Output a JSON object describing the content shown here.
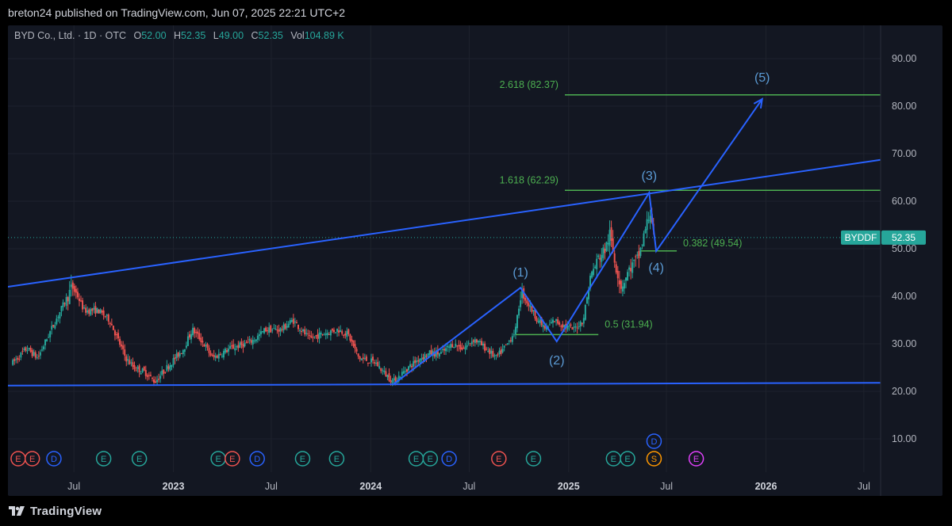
{
  "header": {
    "publisher": "breton24 published on TradingView.com, Jun 07, 2025 22:21 UTC+2"
  },
  "legend": {
    "symbol": "BYD Co., Ltd. · 1D · OTC",
    "o_label": "O",
    "o_value": "52.00",
    "h_label": "H",
    "h_value": "52.35",
    "l_label": "L",
    "l_value": "49.00",
    "c_label": "C",
    "c_value": "52.35",
    "vol_label": "Vol",
    "vol_value": "104.89 K"
  },
  "footer": {
    "brand": "TradingView"
  },
  "colors": {
    "background": "#131722",
    "up": "#26a69a",
    "down": "#ef5350",
    "trendline": "#2962ff",
    "fib": "#4caf50",
    "wave_label": "#5b9bd5"
  },
  "chart_data": {
    "type": "candlestick",
    "title": "",
    "xlabel": "",
    "ylabel": "",
    "ylim": [
      3,
      97
    ],
    "y_ticks": [
      "10.00",
      "20.00",
      "30.00",
      "40.00",
      "50.00",
      "60.00",
      "70.00",
      "80.00",
      "90.00"
    ],
    "x_ticks": [
      {
        "date": "2022-07-01",
        "label": "Jul",
        "bold": false
      },
      {
        "date": "2023-01-01",
        "label": "2023",
        "bold": true
      },
      {
        "date": "2023-07-01",
        "label": "Jul",
        "bold": false
      },
      {
        "date": "2024-01-01",
        "label": "2024",
        "bold": true
      },
      {
        "date": "2024-07-01",
        "label": "Jul",
        "bold": false
      },
      {
        "date": "2025-01-01",
        "label": "2025",
        "bold": true
      },
      {
        "date": "2025-07-01",
        "label": "Jul",
        "bold": false
      },
      {
        "date": "2026-01-01",
        "label": "2026",
        "bold": true
      },
      {
        "date": "2026-07-01",
        "label": "Jul",
        "bold": false
      }
    ],
    "price_path": [
      [
        "2022-03-10",
        26
      ],
      [
        "2022-04-05",
        29
      ],
      [
        "2022-04-25",
        27
      ],
      [
        "2022-05-20",
        33
      ],
      [
        "2022-06-15",
        39
      ],
      [
        "2022-06-28",
        42
      ],
      [
        "2022-07-08",
        40
      ],
      [
        "2022-07-20",
        37
      ],
      [
        "2022-08-15",
        37
      ],
      [
        "2022-09-05",
        35
      ],
      [
        "2022-10-05",
        27
      ],
      [
        "2022-10-20",
        25
      ],
      [
        "2022-11-10",
        24
      ],
      [
        "2022-11-28",
        22
      ],
      [
        "2022-12-20",
        25
      ],
      [
        "2023-01-20",
        29
      ],
      [
        "2023-02-05",
        33
      ],
      [
        "2023-02-20",
        31
      ],
      [
        "2023-03-15",
        27
      ],
      [
        "2023-04-15",
        29
      ],
      [
        "2023-05-15",
        30
      ],
      [
        "2023-06-01",
        31
      ],
      [
        "2023-06-20",
        33
      ],
      [
        "2023-07-20",
        33
      ],
      [
        "2023-08-10",
        35
      ],
      [
        "2023-08-25",
        33
      ],
      [
        "2023-09-10",
        31
      ],
      [
        "2023-10-01",
        32
      ],
      [
        "2023-11-01",
        33
      ],
      [
        "2023-11-20",
        32
      ],
      [
        "2023-12-10",
        27
      ],
      [
        "2024-01-10",
        26
      ],
      [
        "2024-01-25",
        24
      ],
      [
        "2024-02-12",
        22
      ],
      [
        "2024-03-10",
        25
      ],
      [
        "2024-04-01",
        27
      ],
      [
        "2024-04-20",
        28
      ],
      [
        "2024-05-10",
        28
      ],
      [
        "2024-06-01",
        30
      ],
      [
        "2024-06-20",
        29
      ],
      [
        "2024-07-10",
        31
      ],
      [
        "2024-08-01",
        29
      ],
      [
        "2024-08-20",
        27
      ],
      [
        "2024-09-10",
        30
      ],
      [
        "2024-09-25",
        33
      ],
      [
        "2024-10-05",
        41
      ],
      [
        "2024-10-15",
        39
      ],
      [
        "2024-11-05",
        35
      ],
      [
        "2024-11-20",
        33
      ],
      [
        "2024-12-05",
        35
      ],
      [
        "2024-12-20",
        34
      ],
      [
        "2025-01-10",
        33
      ],
      [
        "2025-01-28",
        35
      ],
      [
        "2025-02-10",
        44
      ],
      [
        "2025-02-25",
        48
      ],
      [
        "2025-03-10",
        50
      ],
      [
        "2025-03-18",
        53
      ],
      [
        "2025-03-28",
        47
      ],
      [
        "2025-04-08",
        42
      ],
      [
        "2025-04-25",
        46
      ],
      [
        "2025-05-10",
        48
      ],
      [
        "2025-05-25",
        55
      ],
      [
        "2025-06-02",
        58
      ],
      [
        "2025-06-08",
        52
      ]
    ],
    "trendlines": [
      {
        "name": "upper-channel",
        "from": [
          "2022-03-01",
          42.0
        ],
        "to": [
          "2026-08-01",
          68.7
        ]
      },
      {
        "name": "lower-support",
        "from": [
          "2022-03-01",
          21.2
        ],
        "to": [
          "2026-08-01",
          21.8
        ]
      },
      {
        "name": "elliott-wave",
        "points": [
          [
            "2024-02-12",
            21.5
          ],
          [
            "2024-10-04",
            41.8
          ],
          [
            "2024-12-10",
            30.5
          ],
          [
            "2025-05-30",
            61.8
          ],
          [
            "2025-06-12",
            49.5
          ],
          [
            "2025-12-25",
            81.5
          ]
        ]
      }
    ],
    "fib_levels": [
      {
        "label": "2.618 (82.37)",
        "value": 82.37,
        "from": "2024-12-25",
        "to": "2026-08-01"
      },
      {
        "label": "1.618 (62.29)",
        "value": 62.29,
        "from": "2024-12-25",
        "to": "2026-08-01"
      },
      {
        "label": "0.382 (49.54)",
        "value": 49.54,
        "from": "2025-05-15",
        "to": "2025-07-20"
      },
      {
        "label": "0.5 (31.94)",
        "value": 31.94,
        "from": "2024-09-25",
        "to": "2025-02-25"
      }
    ],
    "wave_labels": [
      {
        "label": "(1)",
        "date": "2024-10-04",
        "value": 45.0
      },
      {
        "label": "(2)",
        "date": "2024-12-10",
        "value": 26.5
      },
      {
        "label": "(3)",
        "date": "2025-05-30",
        "value": 65.3
      },
      {
        "label": "(4)",
        "date": "2025-06-12",
        "value": 46.0
      },
      {
        "label": "(5)",
        "date": "2025-12-25",
        "value": 86.0
      }
    ],
    "current_price": {
      "symbol": "BYDDF",
      "value": 52.35
    },
    "event_markers": [
      {
        "date": "2022-03-20",
        "type": "E",
        "color": "#ef5350"
      },
      {
        "date": "2022-04-15",
        "type": "E",
        "color": "#ef5350"
      },
      {
        "date": "2022-05-25",
        "type": "D",
        "color": "#2962ff"
      },
      {
        "date": "2022-08-25",
        "type": "E",
        "color": "#26a69a"
      },
      {
        "date": "2022-10-30",
        "type": "E",
        "color": "#26a69a"
      },
      {
        "date": "2023-03-25",
        "type": "E",
        "color": "#26a69a"
      },
      {
        "date": "2023-04-20",
        "type": "E",
        "color": "#ef5350"
      },
      {
        "date": "2023-06-05",
        "type": "D",
        "color": "#2962ff"
      },
      {
        "date": "2023-08-28",
        "type": "E",
        "color": "#26a69a"
      },
      {
        "date": "2023-10-30",
        "type": "E",
        "color": "#26a69a"
      },
      {
        "date": "2024-03-25",
        "type": "E",
        "color": "#26a69a"
      },
      {
        "date": "2024-04-20",
        "type": "E",
        "color": "#26a69a"
      },
      {
        "date": "2024-05-25",
        "type": "D",
        "color": "#2962ff"
      },
      {
        "date": "2024-08-25",
        "type": "E",
        "color": "#ef5350"
      },
      {
        "date": "2024-10-28",
        "type": "E",
        "color": "#26a69a"
      },
      {
        "date": "2025-03-25",
        "type": "E",
        "color": "#26a69a"
      },
      {
        "date": "2025-04-20",
        "type": "E",
        "color": "#26a69a"
      },
      {
        "date": "2025-06-08",
        "type": "D",
        "color": "#2962ff",
        "row": 1
      },
      {
        "date": "2025-06-08",
        "type": "S",
        "color": "#ff9800"
      },
      {
        "date": "2025-08-25",
        "type": "E",
        "color": "#e040fb"
      }
    ]
  }
}
